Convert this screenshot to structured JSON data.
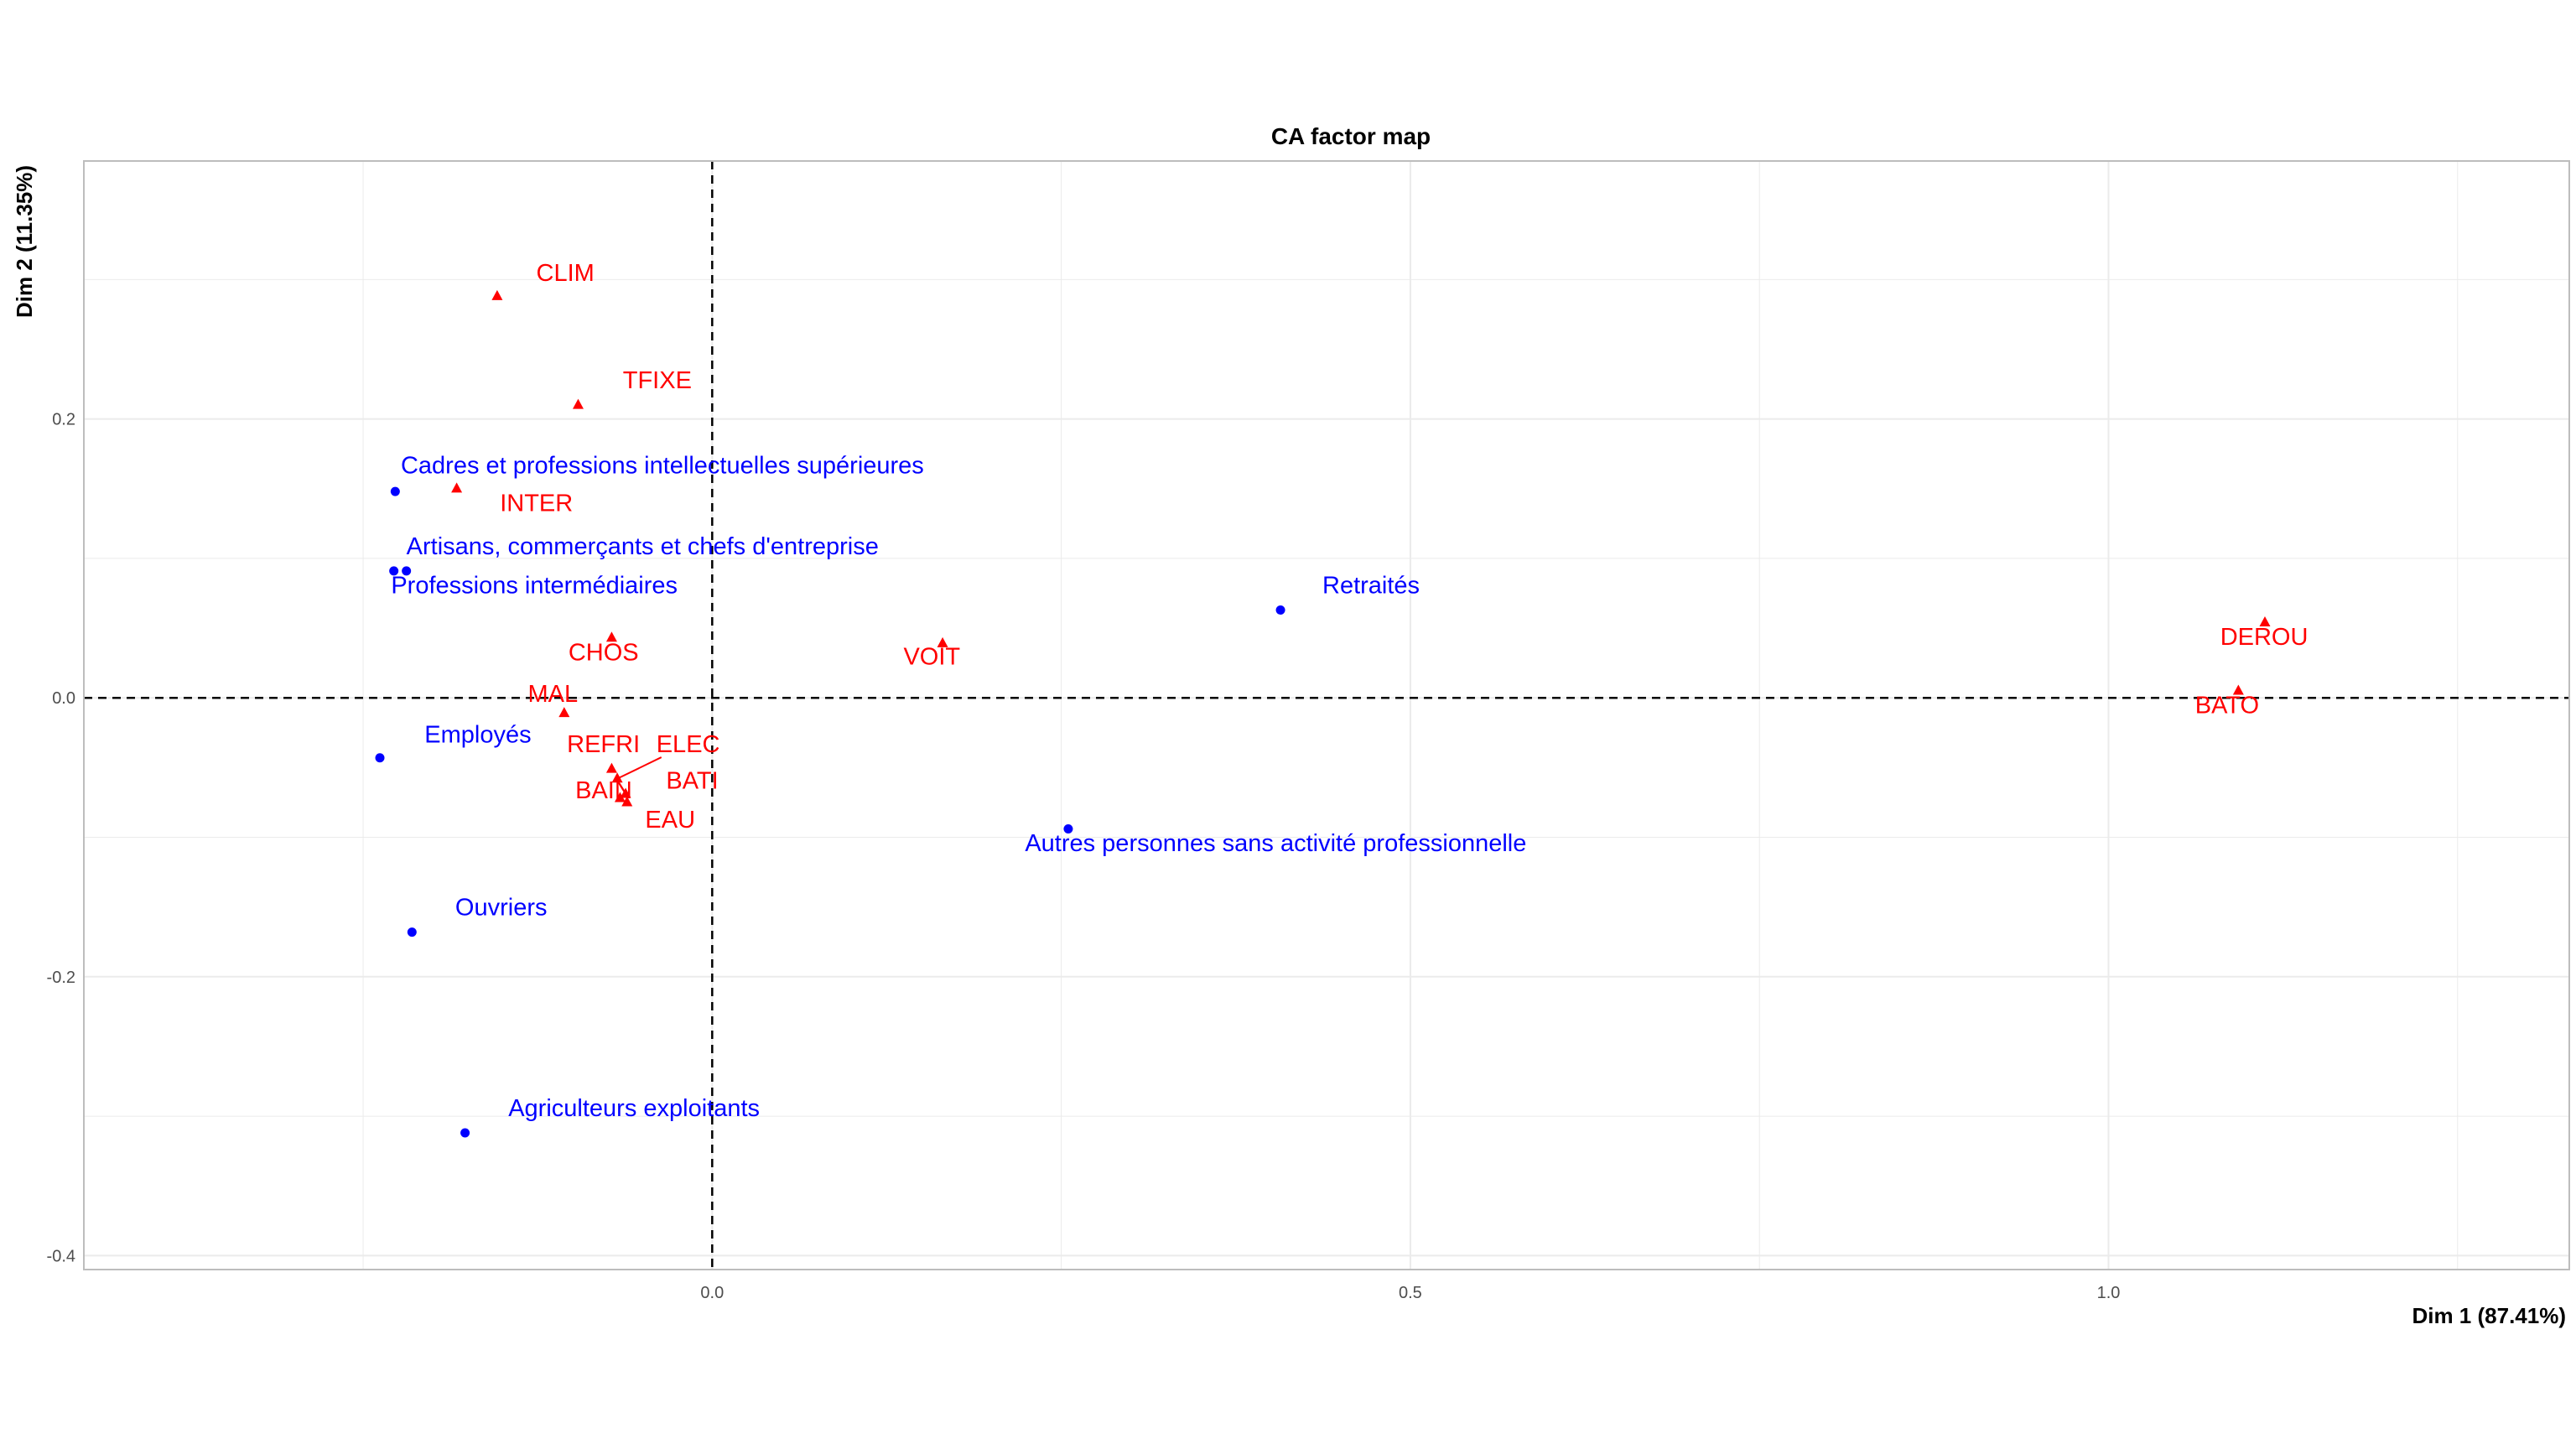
{
  "chart_data": {
    "type": "scatter",
    "title": "CA factor map",
    "xlabel": "Dim 1 (87.41%)",
    "ylabel": "Dim 2 (11.35%)",
    "xlim": [
      -0.45,
      1.33
    ],
    "ylim": [
      -0.41,
      0.385
    ],
    "xticks": [
      0.0,
      0.5,
      1.0
    ],
    "xtick_labels": [
      "0.0",
      "0.5",
      "1.0"
    ],
    "yticks": [
      -0.4,
      -0.2,
      0.0,
      0.2
    ],
    "ytick_labels": [
      "-0.4",
      "-0.2",
      "0.0",
      "0.2"
    ],
    "grid": true,
    "reference_lines": {
      "x": 0,
      "y": 0,
      "style": "dashed"
    },
    "colors": {
      "rows": "#0000ff",
      "cols": "#ff0000",
      "grid": "#ebebeb",
      "frame": "#bdbdbd"
    },
    "series": [
      {
        "key": "rows",
        "marker": "circle",
        "color": "#0000ff",
        "points": [
          {
            "label": "Cadres et professions intellectuelles supérieures",
            "x": -0.227,
            "y": 0.148,
            "lx": -0.223,
            "ly": 0.161
          },
          {
            "label": "Artisans, commerçants et chefs d'entreprise",
            "x": -0.219,
            "y": 0.091,
            "lx": -0.219,
            "ly": 0.103
          },
          {
            "label": "Professions intermédiaires",
            "x": -0.228,
            "y": 0.091,
            "lx": -0.23,
            "ly": 0.075
          },
          {
            "label": "Retraités",
            "x": 0.407,
            "y": 0.063,
            "lx": 0.437,
            "ly": 0.075
          },
          {
            "label": "Employés",
            "x": -0.238,
            "y": -0.043,
            "lx": -0.206,
            "ly": -0.032
          },
          {
            "label": "Autres personnes sans activité professionnelle",
            "x": 0.255,
            "y": -0.094,
            "lx": 0.224,
            "ly": -0.11
          },
          {
            "label": "Ouvriers",
            "x": -0.215,
            "y": -0.168,
            "lx": -0.184,
            "ly": -0.156
          },
          {
            "label": "Agriculteurs exploitants",
            "x": -0.177,
            "y": -0.312,
            "lx": -0.146,
            "ly": -0.3
          }
        ]
      },
      {
        "key": "cols",
        "marker": "triangle",
        "color": "#ff0000",
        "points": [
          {
            "label": "CLIM",
            "x": -0.154,
            "y": 0.288,
            "lx": -0.126,
            "ly": 0.299
          },
          {
            "label": "TFIXE",
            "x": -0.096,
            "y": 0.21,
            "lx": -0.064,
            "ly": 0.222
          },
          {
            "label": "INTER",
            "x": -0.183,
            "y": 0.15,
            "lx": -0.152,
            "ly": 0.134
          },
          {
            "label": "CHOS",
            "x": -0.072,
            "y": 0.043,
            "lx": -0.103,
            "ly": 0.027
          },
          {
            "label": "VOIT",
            "x": 0.165,
            "y": 0.039,
            "lx": 0.137,
            "ly": 0.024
          },
          {
            "label": "DEROU",
            "x": 1.112,
            "y": 0.054,
            "lx": 1.08,
            "ly": 0.038
          },
          {
            "label": "BATO",
            "x": 1.093,
            "y": 0.005,
            "lx": 1.062,
            "ly": -0.011
          },
          {
            "label": "MAL",
            "x": -0.106,
            "y": -0.011,
            "lx": -0.132,
            "ly": -0.003
          },
          {
            "label": "REFRI",
            "x": -0.072,
            "y": -0.051,
            "lx": -0.104,
            "ly": -0.039
          },
          {
            "label": "ELEC",
            "x": -0.068,
            "y": -0.058,
            "lx": -0.04,
            "ly": -0.039
          },
          {
            "label": "BATI",
            "x": -0.062,
            "y": -0.069,
            "lx": -0.033,
            "ly": -0.065
          },
          {
            "label": "BAIN",
            "x": -0.066,
            "y": -0.072,
            "lx": -0.098,
            "ly": -0.072
          },
          {
            "label": "EAU",
            "x": -0.061,
            "y": -0.075,
            "lx": -0.048,
            "ly": -0.093
          }
        ]
      }
    ]
  }
}
